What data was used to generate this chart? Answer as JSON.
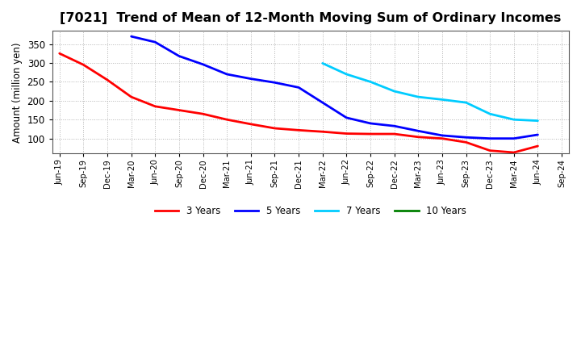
{
  "title": "[7021]  Trend of Mean of 12-Month Moving Sum of Ordinary Incomes",
  "ylabel": "Amount (million yen)",
  "background_color": "#ffffff",
  "plot_bg_color": "#ffffff",
  "grid_color": "#aaaaaa",
  "title_fontsize": 11.5,
  "ylim": [
    60,
    385
  ],
  "yticks": [
    100,
    150,
    200,
    250,
    300,
    350
  ],
  "x_labels": [
    "Jun-19",
    "Sep-19",
    "Dec-19",
    "Mar-20",
    "Jun-20",
    "Sep-20",
    "Dec-20",
    "Mar-21",
    "Jun-21",
    "Sep-21",
    "Dec-21",
    "Mar-22",
    "Jun-22",
    "Sep-22",
    "Dec-22",
    "Mar-23",
    "Jun-23",
    "Sep-23",
    "Dec-23",
    "Mar-24",
    "Jun-24",
    "Sep-24"
  ],
  "series": [
    {
      "name": "3 Years",
      "color": "#ff0000",
      "linewidth": 2.0,
      "values": [
        325,
        295,
        255,
        210,
        185,
        175,
        165,
        150,
        138,
        127,
        122,
        118,
        113,
        112,
        112,
        104,
        100,
        90,
        68,
        63,
        80,
        null
      ]
    },
    {
      "name": "5 Years",
      "color": "#0000ff",
      "linewidth": 2.0,
      "values": [
        null,
        null,
        null,
        370,
        355,
        318,
        296,
        270,
        258,
        248,
        235,
        195,
        155,
        140,
        133,
        120,
        108,
        103,
        100,
        100,
        110,
        null
      ]
    },
    {
      "name": "7 Years",
      "color": "#00ccff",
      "linewidth": 2.0,
      "values": [
        null,
        null,
        null,
        null,
        null,
        null,
        null,
        null,
        null,
        null,
        null,
        299,
        270,
        250,
        225,
        210,
        203,
        195,
        165,
        150,
        147,
        null
      ]
    },
    {
      "name": "10 Years",
      "color": "#008000",
      "linewidth": 2.0,
      "values": [
        null,
        null,
        null,
        null,
        null,
        null,
        null,
        null,
        null,
        null,
        null,
        null,
        null,
        null,
        null,
        null,
        null,
        null,
        null,
        null,
        null,
        null
      ]
    }
  ]
}
